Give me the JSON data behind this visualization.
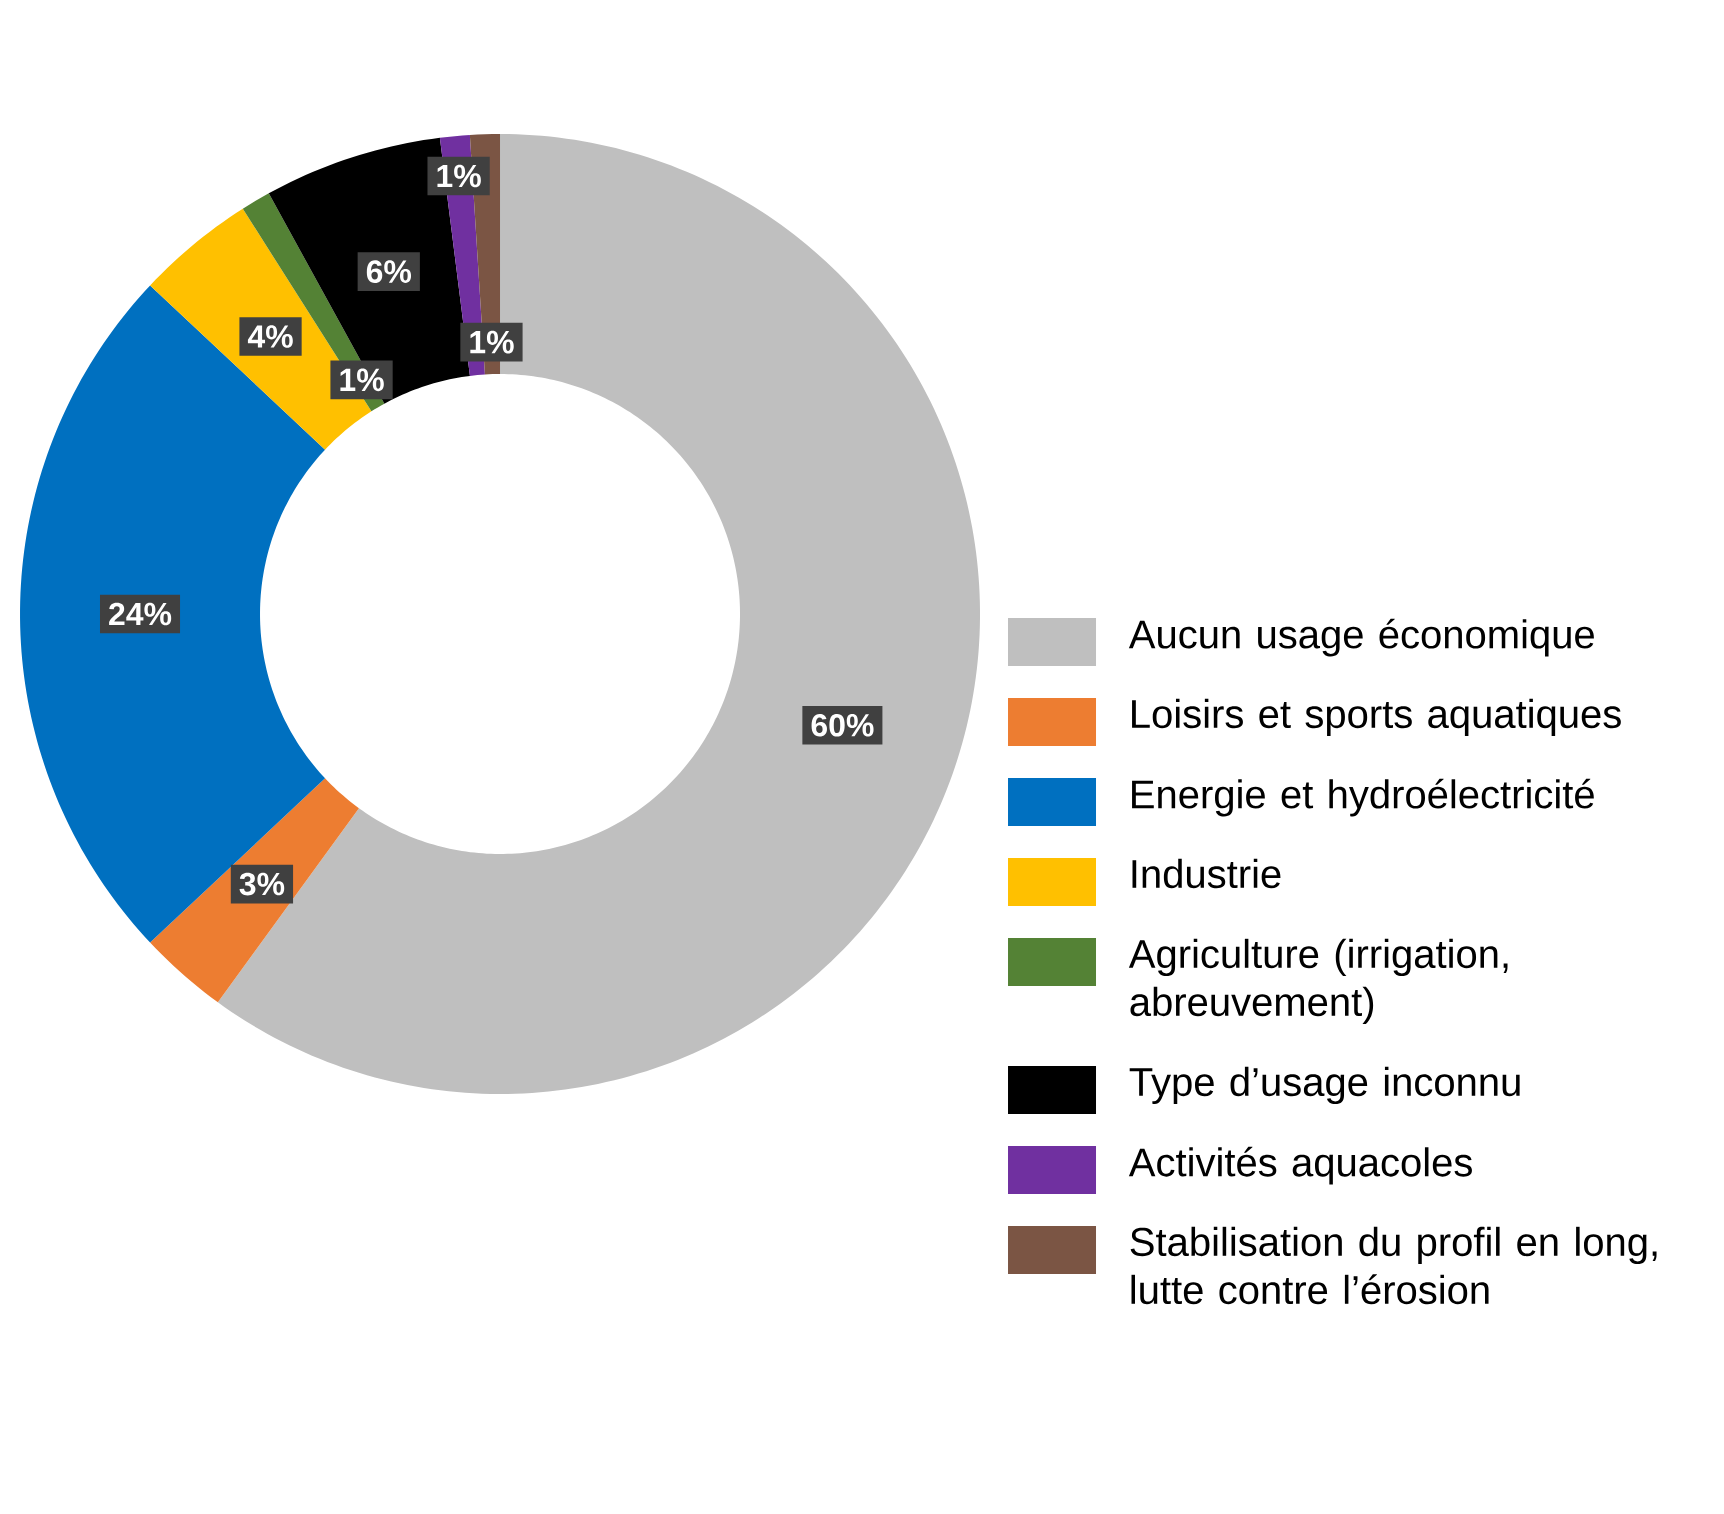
{
  "chart_data": {
    "type": "donut",
    "categories": [
      "Aucun usage économique",
      "Loisirs et sports aquatiques",
      "Energie et hydroélectricité",
      "Industrie",
      "Agriculture (irrigation, abreuvement)",
      "Type d’usage inconnu",
      "Activités aquacoles",
      "Stabilisation du profil en long, lutte contre l’érosion"
    ],
    "values": [
      60,
      3,
      24,
      4,
      1,
      6,
      1,
      1
    ],
    "colors": [
      "#bfbfbf",
      "#ed7d31",
      "#0070c0",
      "#ffc000",
      "#548235",
      "#000000",
      "#7030a0",
      "#7b5544"
    ],
    "value_labels": [
      "60%",
      "3%",
      "24%",
      "4%",
      "1%",
      "6%",
      "1%",
      "1%"
    ],
    "legend": "right"
  }
}
